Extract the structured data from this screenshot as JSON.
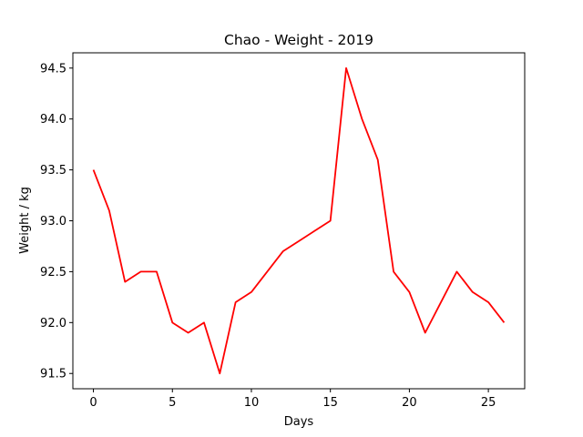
{
  "chart_data": {
    "type": "line",
    "title": "Chao - Weight - 2019",
    "xlabel": "Days",
    "ylabel": "Weight / kg",
    "xlim": [
      -1.3,
      27.3
    ],
    "ylim": [
      91.35,
      94.65
    ],
    "xticks": [
      0,
      5,
      10,
      15,
      20,
      25
    ],
    "yticks": [
      91.5,
      92.0,
      92.5,
      93.0,
      93.5,
      94.0,
      94.5
    ],
    "ytick_labels": [
      "91.5",
      "92.0",
      "92.5",
      "93.0",
      "93.5",
      "94.0",
      "94.5"
    ],
    "grid": false,
    "series": [
      {
        "color": "#ff0000",
        "x": [
          0,
          1,
          2,
          3,
          4,
          5,
          6,
          7,
          8,
          9,
          10,
          11,
          12,
          13,
          14,
          15,
          16,
          17,
          18,
          19,
          20,
          21,
          22,
          23,
          24,
          25,
          26
        ],
        "values": [
          93.5,
          93.1,
          92.4,
          92.5,
          92.5,
          92.0,
          91.9,
          92.0,
          91.5,
          92.2,
          92.3,
          92.5,
          92.7,
          92.8,
          92.9,
          93.0,
          94.5,
          94.0,
          93.6,
          92.5,
          92.3,
          91.9,
          92.2,
          92.5,
          92.3,
          92.2,
          92.0
        ]
      }
    ]
  }
}
